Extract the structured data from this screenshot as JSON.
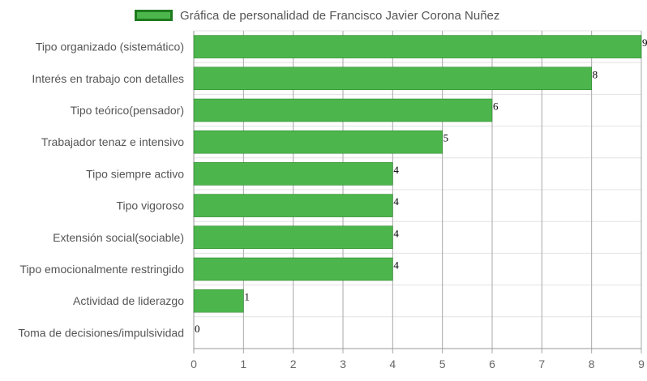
{
  "chart_data": {
    "type": "bar",
    "orientation": "horizontal",
    "categories": [
      "Tipo organizado (sistemático)",
      "Interés en trabajo con detalles",
      "Tipo teórico(pensador)",
      "Trabajador tenaz e intensivo",
      "Tipo siempre activo",
      "Tipo vigoroso",
      "Extensión social(sociable)",
      "Tipo emocionalmente restringido",
      "Actividad de liderazgo",
      "Toma de decisiones/impulsividad"
    ],
    "series": [
      {
        "name": "Gráfica de personalidad de Francisco Javier Corona Nuñez",
        "values": [
          9,
          8,
          6,
          5,
          4,
          4,
          4,
          4,
          1,
          0
        ],
        "color": "#4cb64c",
        "border_color": "#1f7a1f"
      }
    ],
    "xlim": [
      0,
      9
    ],
    "xticks": [
      "0",
      "1",
      "2",
      "3",
      "4",
      "5",
      "6",
      "7",
      "8",
      "9"
    ],
    "data_labels": [
      "9",
      "8",
      "6",
      "5",
      "4",
      "4",
      "4",
      "4",
      "1",
      "0"
    ],
    "grid": true,
    "legend_position": "top"
  }
}
